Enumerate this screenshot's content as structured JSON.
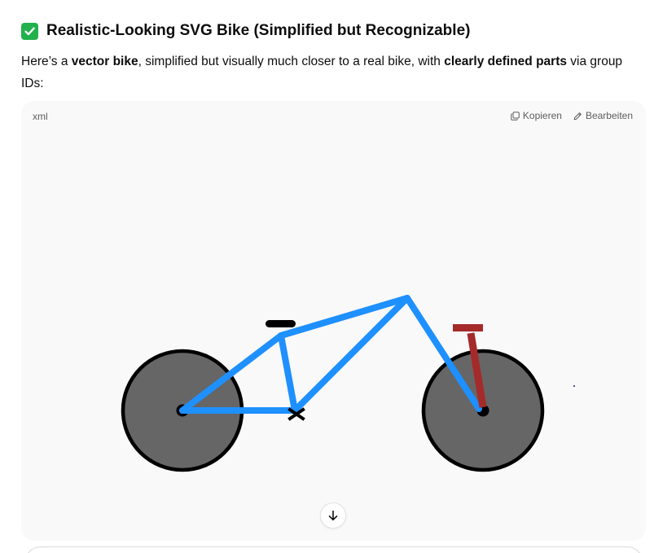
{
  "heading": {
    "emoji_icon": "white-heavy-check-mark-icon",
    "text": "Realistic-Looking SVG Bike (Simplified but Recognizable)"
  },
  "intro": {
    "part1": "Here’s a ",
    "bold1": "vector bike",
    "part2": ", simplified but visually much closer to a real bike, with ",
    "bold2": "clearly defined parts",
    "part3": " via group IDs:"
  },
  "code_block": {
    "language": "xml",
    "copy_label": "Kopieren",
    "edit_label": "Bearbeiten"
  },
  "colors": {
    "frame": "#1e90ff",
    "wheel_fill": "#666666",
    "wheel_stroke": "#000000",
    "fork": "#a52a2a",
    "card_bg": "#f9f9f9",
    "check_green": "#22b14c"
  },
  "icons": {
    "copy": "copy-icon",
    "edit": "pencil-icon",
    "scroll": "arrow-down-icon"
  }
}
